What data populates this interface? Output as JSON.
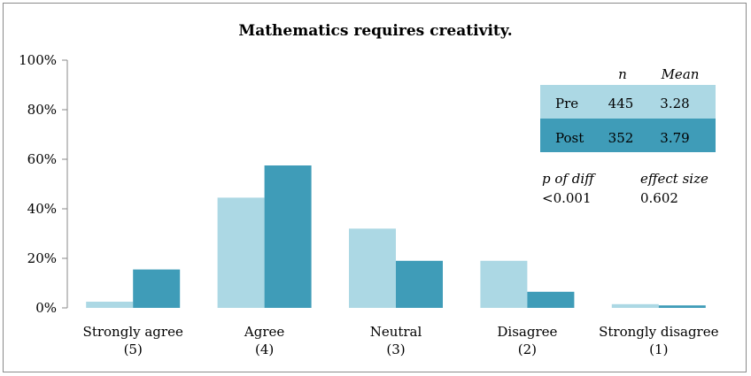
{
  "chart_data": {
    "type": "bar",
    "title": "Mathematics requires creativity.",
    "categories": [
      [
        "Strongly agree",
        "(5)"
      ],
      [
        "Agree",
        "(4)"
      ],
      [
        "Neutral",
        "(3)"
      ],
      [
        "Disagree",
        "(2)"
      ],
      [
        "Strongly  disagree",
        "(1)"
      ]
    ],
    "series": [
      {
        "name": "Pre",
        "color": "#acd8e4",
        "values": [
          2.5,
          44.5,
          32,
          19,
          1.5
        ]
      },
      {
        "name": "Post",
        "color": "#3f9cb8",
        "values": [
          15.5,
          57.5,
          19,
          6.5,
          1
        ]
      }
    ],
    "ylim": [
      0,
      100
    ],
    "yticks": [
      "0%",
      "20%",
      "40%",
      "60%",
      "80%",
      "100%"
    ],
    "grid": false,
    "stats_table": {
      "headers": [
        "n",
        "Mean"
      ],
      "rows": [
        {
          "label": "Pre",
          "n": "445",
          "mean": "3.28"
        },
        {
          "label": "Post",
          "n": "352",
          "mean": "3.79"
        }
      ]
    },
    "annotations": {
      "p_label": "p of diff",
      "p_value": "<0.001",
      "effect_label": "effect size",
      "effect_value": "0.602"
    }
  }
}
